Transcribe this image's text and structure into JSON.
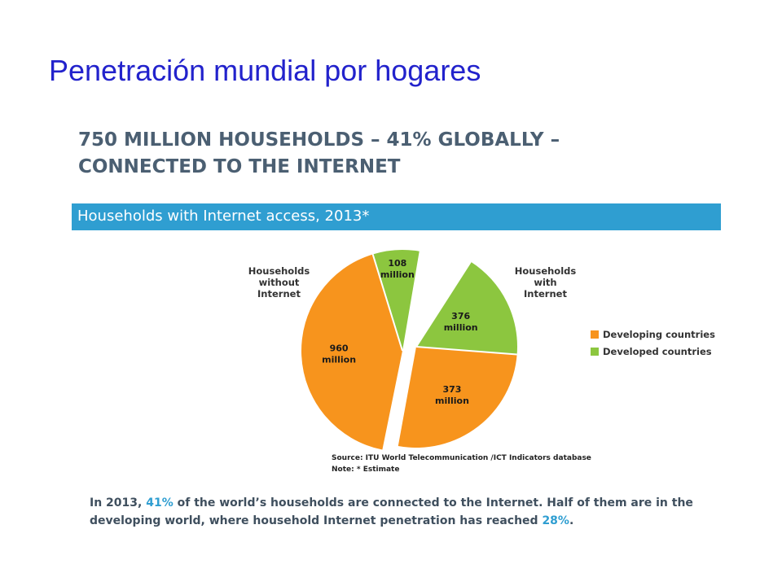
{
  "slide": {
    "title": "Penetración mundial por hogares"
  },
  "headline": {
    "line1": "750 MILLION HOUSEHOLDS – 41% GLOBALLY –",
    "line2": "CONNECTED TO THE INTERNET"
  },
  "banner": {
    "text": "Households with Internet access, 2013*"
  },
  "callouts": {
    "without": [
      "Households",
      "without",
      "Internet"
    ],
    "with": [
      "Households",
      "with",
      "Internet"
    ]
  },
  "source": {
    "line1": "Source:  ITU World Telecommunication /ICT Indicators database",
    "line2": "Note: * Estimate"
  },
  "caption": {
    "l1a": "In 2013, ",
    "l1b": "41%",
    "l1c": " of the world’s households are connected to the Internet. Half of them are in the",
    "l2a": "developing world, where household Internet penetration has reached ",
    "l2b": "28%",
    "l2c": "."
  },
  "colors": {
    "developing": "#f7941d",
    "developed": "#8cc63f",
    "banner": "#2f9ed1",
    "title": "#2222cc"
  },
  "chart_data": {
    "type": "pie",
    "title": "Households with Internet access, 2013*",
    "unit": "million",
    "legend_position": "right",
    "legend": [
      "Developing countries",
      "Developed countries"
    ],
    "groups": [
      {
        "name": "Households without Internet",
        "slices": [
          {
            "series": "Developed countries",
            "value": 108,
            "label": [
              "108",
              "million"
            ]
          },
          {
            "series": "Developing countries",
            "value": 960,
            "label": [
              "960",
              "million"
            ]
          }
        ]
      },
      {
        "name": "Households with Internet",
        "slices": [
          {
            "series": "Developed countries",
            "value": 376,
            "label": [
              "376",
              "million"
            ]
          },
          {
            "series": "Developing countries",
            "value": 373,
            "label": [
              "373",
              "million"
            ]
          }
        ]
      }
    ]
  }
}
